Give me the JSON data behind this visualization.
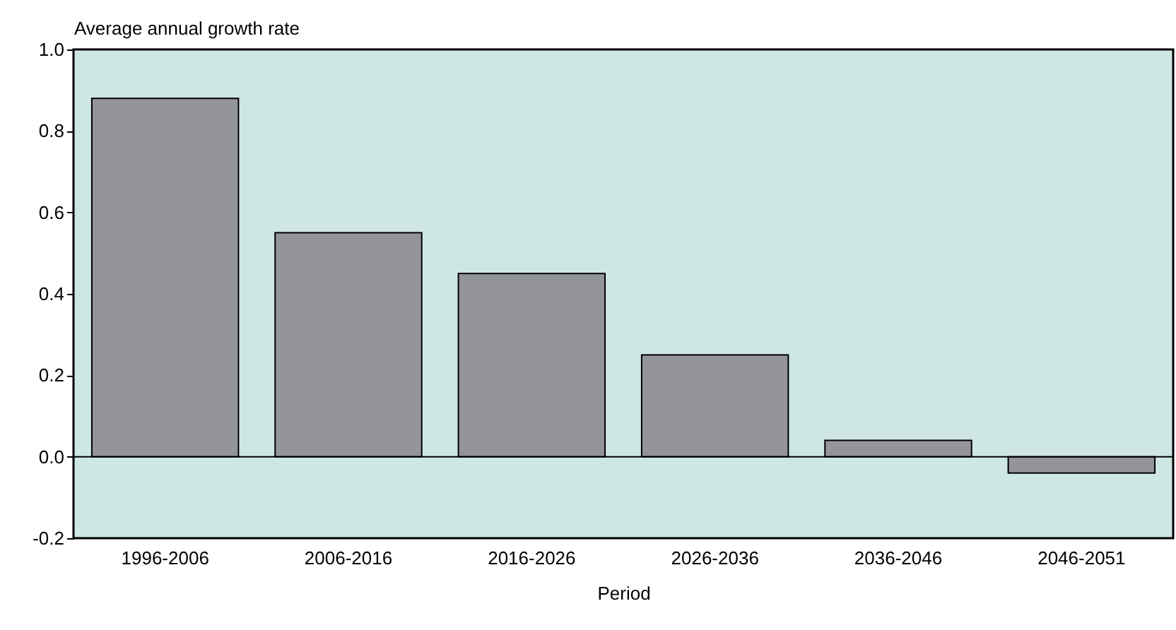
{
  "chart_data": {
    "type": "bar",
    "ylabel": "Average annual growth rate",
    "xlabel": "Period",
    "categories": [
      "1996-2006",
      "2006-2016",
      "2016-2026",
      "2026-2036",
      "2036-2046",
      "2046-2051"
    ],
    "values": [
      0.88,
      0.55,
      0.45,
      0.25,
      0.04,
      -0.04
    ],
    "color": "#939598",
    "ylim": [
      -0.2,
      1.0
    ],
    "yticks": [
      {
        "value": -0.2,
        "label": "-0.2"
      },
      {
        "value": 0,
        "label": "0.0"
      },
      {
        "value": 0.2,
        "label": "0.2"
      },
      {
        "value": 0.4,
        "label": "0.4"
      },
      {
        "value": 0.6,
        "label": "0.6"
      },
      {
        "value": 0.8,
        "label": "0.8"
      },
      {
        "value": 1.0,
        "label": "1.0"
      }
    ],
    "ref_lines": [
      {
        "axis": "y",
        "value": 0
      }
    ]
  }
}
